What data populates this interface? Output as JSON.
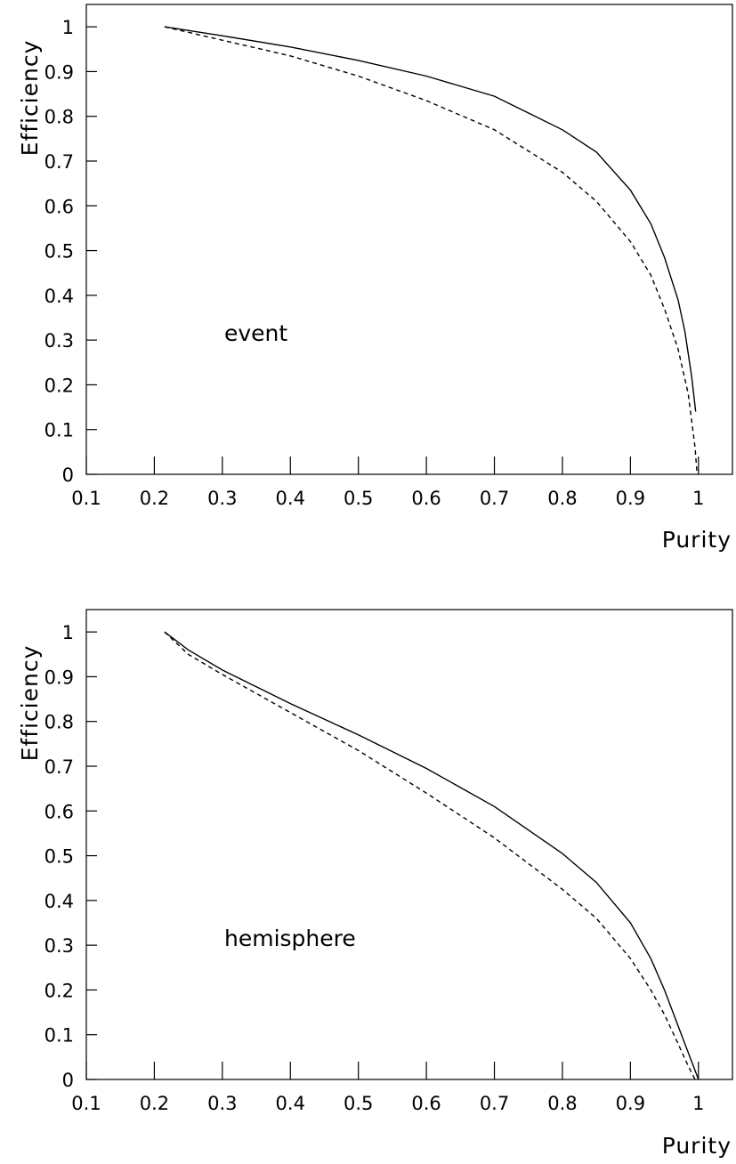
{
  "chart_data": [
    {
      "type": "line",
      "annotation": "event",
      "xlabel": "Purity",
      "ylabel": "Efficiency",
      "xlim": [
        0.1,
        1.05
      ],
      "ylim": [
        0,
        1.05
      ],
      "xticks": [
        "0.1",
        "0.2",
        "0.3",
        "0.4",
        "0.5",
        "0.6",
        "0.7",
        "0.8",
        "0.9",
        "1"
      ],
      "yticks": [
        "0",
        "0.1",
        "0.2",
        "0.3",
        "0.4",
        "0.5",
        "0.6",
        "0.7",
        "0.8",
        "0.9",
        "1"
      ],
      "grid": false,
      "series": [
        {
          "style": "solid",
          "points": [
            [
              0.215,
              1.0
            ],
            [
              0.3,
              0.98
            ],
            [
              0.4,
              0.955
            ],
            [
              0.5,
              0.925
            ],
            [
              0.6,
              0.89
            ],
            [
              0.7,
              0.845
            ],
            [
              0.8,
              0.77
            ],
            [
              0.85,
              0.72
            ],
            [
              0.9,
              0.635
            ],
            [
              0.93,
              0.56
            ],
            [
              0.95,
              0.485
            ],
            [
              0.97,
              0.39
            ],
            [
              0.98,
              0.32
            ],
            [
              0.99,
              0.22
            ],
            [
              0.996,
              0.14
            ]
          ]
        },
        {
          "style": "dashed",
          "points": [
            [
              0.215,
              1.0
            ],
            [
              0.3,
              0.97
            ],
            [
              0.4,
              0.935
            ],
            [
              0.5,
              0.89
            ],
            [
              0.6,
              0.835
            ],
            [
              0.7,
              0.77
            ],
            [
              0.8,
              0.675
            ],
            [
              0.85,
              0.61
            ],
            [
              0.9,
              0.52
            ],
            [
              0.93,
              0.445
            ],
            [
              0.95,
              0.37
            ],
            [
              0.97,
              0.28
            ],
            [
              0.985,
              0.18
            ],
            [
              0.995,
              0.06
            ],
            [
              0.998,
              0.0
            ]
          ]
        }
      ]
    },
    {
      "type": "line",
      "annotation": "hemisphere",
      "xlabel": "Purity",
      "ylabel": "Efficiency",
      "xlim": [
        0.1,
        1.05
      ],
      "ylim": [
        0,
        1.05
      ],
      "xticks": [
        "0.1",
        "0.2",
        "0.3",
        "0.4",
        "0.5",
        "0.6",
        "0.7",
        "0.8",
        "0.9",
        "1"
      ],
      "yticks": [
        "0",
        "0.1",
        "0.2",
        "0.3",
        "0.4",
        "0.5",
        "0.6",
        "0.7",
        "0.8",
        "0.9",
        "1"
      ],
      "grid": false,
      "series": [
        {
          "style": "solid",
          "points": [
            [
              0.215,
              1.0
            ],
            [
              0.25,
              0.96
            ],
            [
              0.3,
              0.915
            ],
            [
              0.4,
              0.84
            ],
            [
              0.5,
              0.77
            ],
            [
              0.6,
              0.695
            ],
            [
              0.7,
              0.61
            ],
            [
              0.8,
              0.505
            ],
            [
              0.85,
              0.44
            ],
            [
              0.9,
              0.35
            ],
            [
              0.93,
              0.27
            ],
            [
              0.95,
              0.2
            ],
            [
              0.97,
              0.12
            ],
            [
              0.985,
              0.06
            ],
            [
              0.995,
              0.02
            ],
            [
              1.0,
              0.0
            ]
          ]
        },
        {
          "style": "dashed",
          "points": [
            [
              0.215,
              1.0
            ],
            [
              0.25,
              0.95
            ],
            [
              0.3,
              0.905
            ],
            [
              0.4,
              0.82
            ],
            [
              0.5,
              0.735
            ],
            [
              0.6,
              0.64
            ],
            [
              0.7,
              0.54
            ],
            [
              0.8,
              0.425
            ],
            [
              0.85,
              0.36
            ],
            [
              0.9,
              0.27
            ],
            [
              0.93,
              0.2
            ],
            [
              0.95,
              0.145
            ],
            [
              0.97,
              0.08
            ],
            [
              0.985,
              0.03
            ],
            [
              0.995,
              0.0
            ]
          ]
        }
      ]
    }
  ]
}
